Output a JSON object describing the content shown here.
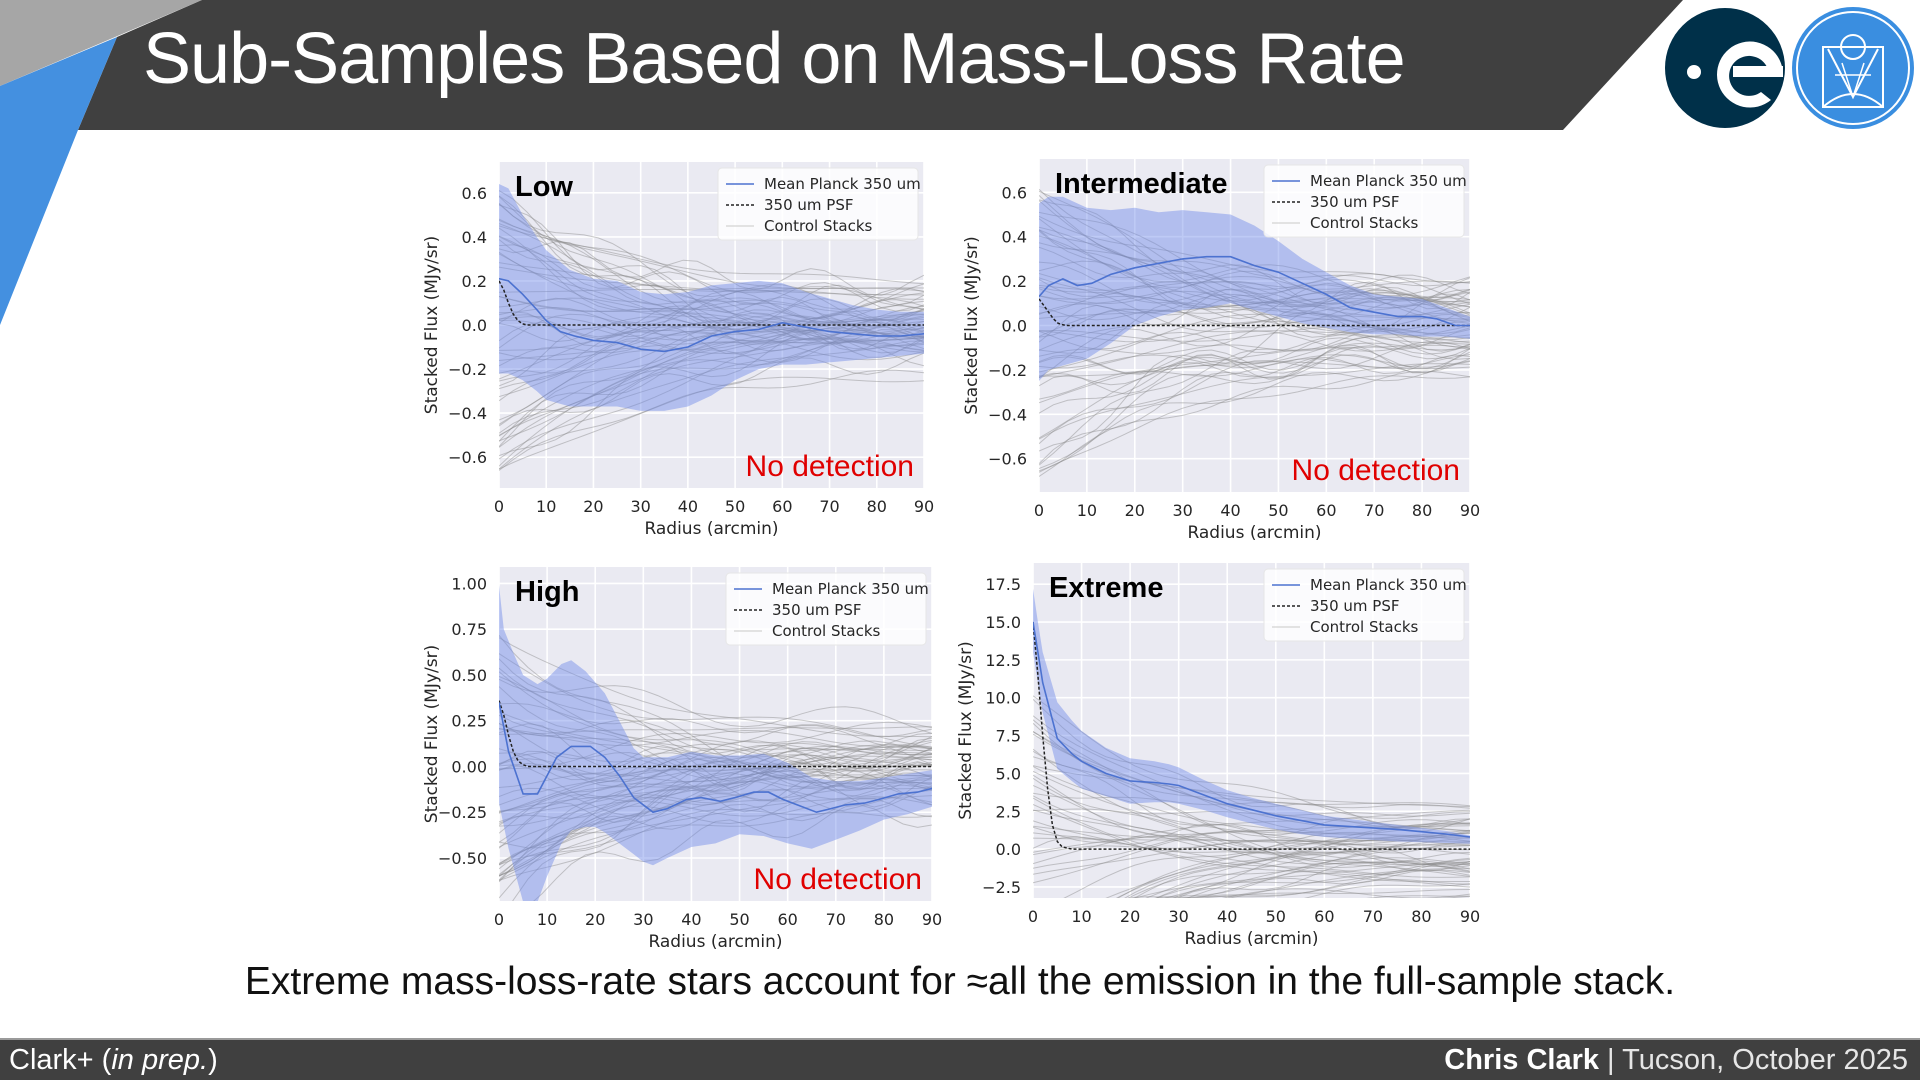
{
  "slide": {
    "title": "Sub-Samples Based on Mass-Loss Rate",
    "caption": "Extreme mass-loss-rate stars account for ≈all the emission in the full-sample stack.",
    "footer": {
      "citation_prefix": "Clark+ (",
      "citation_italic": "in prep.",
      "citation_suffix": ")",
      "presenter": "Chris Clark",
      "separator": " | ",
      "venue_date": "Tucson, October 2025"
    },
    "logos": [
      "esa-logo",
      "jwst-stsci-logo"
    ],
    "colors": {
      "title_bar": "#404040",
      "accent_blue": "#4490e0",
      "accent_gray": "#a6a6a6",
      "esa_navy": "#003049",
      "jwst_blue": "#3a8ee0",
      "no_detection_red": "#e00000",
      "mean_line": "#4c72d0",
      "band_fill": "#a9b8ee",
      "plot_bg": "#eaeaf2"
    }
  },
  "chart_data": [
    {
      "type": "line",
      "panel_label": "Low",
      "annotation": "No detection",
      "xlabel": "Radius (arcmin)",
      "ylabel": "Stacked Flux (MJy/sr)",
      "xlim": [
        0,
        90
      ],
      "ylim": [
        -0.74,
        0.74
      ],
      "xticks": [
        0,
        10,
        20,
        30,
        40,
        50,
        60,
        70,
        80,
        90
      ],
      "yticks": [
        -0.6,
        -0.4,
        -0.2,
        0.0,
        0.2,
        0.4,
        0.6
      ],
      "ytick_labels": [
        "−0.6",
        "−0.4",
        "−0.2",
        "0.0",
        "0.2",
        "0.4",
        "0.6"
      ],
      "grid": true,
      "legend": {
        "position": "top-right",
        "entries": [
          "Mean Planck 350 um",
          "350 um PSF",
          "Control Stacks"
        ]
      },
      "series": [
        {
          "name": "Mean Planck 350 um",
          "x": [
            0,
            2,
            5,
            8,
            10,
            13,
            16,
            20,
            25,
            30,
            35,
            40,
            45,
            50,
            55,
            60,
            65,
            70,
            75,
            80,
            85,
            90
          ],
          "y": [
            0.21,
            0.2,
            0.14,
            0.07,
            0.02,
            -0.03,
            -0.05,
            -0.07,
            -0.08,
            -0.11,
            -0.12,
            -0.1,
            -0.05,
            -0.03,
            -0.02,
            0.01,
            -0.01,
            -0.03,
            -0.04,
            -0.05,
            -0.05,
            -0.04
          ]
        },
        {
          "name": "band_upper",
          "x": [
            0,
            2,
            5,
            8,
            10,
            15,
            20,
            25,
            30,
            35,
            40,
            45,
            50,
            55,
            60,
            65,
            70,
            75,
            80,
            85,
            90
          ],
          "y": [
            0.64,
            0.62,
            0.5,
            0.4,
            0.34,
            0.25,
            0.21,
            0.2,
            0.15,
            0.14,
            0.15,
            0.18,
            0.19,
            0.2,
            0.19,
            0.15,
            0.12,
            0.09,
            0.07,
            0.06,
            0.06
          ]
        },
        {
          "name": "band_lower",
          "x": [
            0,
            2,
            5,
            8,
            10,
            15,
            20,
            25,
            30,
            35,
            40,
            45,
            50,
            55,
            60,
            65,
            70,
            75,
            80,
            85,
            90
          ],
          "y": [
            -0.22,
            -0.22,
            -0.25,
            -0.3,
            -0.34,
            -0.37,
            -0.37,
            -0.37,
            -0.39,
            -0.39,
            -0.37,
            -0.32,
            -0.25,
            -0.2,
            -0.18,
            -0.18,
            -0.17,
            -0.16,
            -0.15,
            -0.14,
            -0.13
          ]
        },
        {
          "name": "350 um PSF",
          "x": [
            0,
            1,
            2,
            3,
            4,
            5,
            6,
            90
          ],
          "y": [
            0.2,
            0.16,
            0.1,
            0.05,
            0.02,
            0.005,
            0,
            0
          ]
        }
      ]
    },
    {
      "type": "line",
      "panel_label": "Intermediate",
      "annotation": "No detection",
      "xlabel": "Radius (arcmin)",
      "ylabel": "Stacked Flux (MJy/sr)",
      "xlim": [
        0,
        90
      ],
      "ylim": [
        -0.75,
        0.75
      ],
      "xticks": [
        0,
        10,
        20,
        30,
        40,
        50,
        60,
        70,
        80,
        90
      ],
      "yticks": [
        -0.6,
        -0.4,
        -0.2,
        0.0,
        0.2,
        0.4,
        0.6
      ],
      "ytick_labels": [
        "−0.6",
        "−0.4",
        "−0.2",
        "0.0",
        "0.2",
        "0.4",
        "0.6"
      ],
      "grid": true,
      "legend": {
        "position": "top-right",
        "entries": [
          "Mean Planck 350 um",
          "350 um PSF",
          "Control Stacks"
        ]
      },
      "series": [
        {
          "name": "Mean Planck 350 um",
          "x": [
            0,
            2,
            5,
            8,
            11,
            15,
            20,
            25,
            30,
            35,
            40,
            45,
            50,
            55,
            60,
            65,
            70,
            75,
            80,
            83,
            87,
            90
          ],
          "y": [
            0.13,
            0.18,
            0.21,
            0.18,
            0.19,
            0.23,
            0.26,
            0.28,
            0.3,
            0.31,
            0.31,
            0.27,
            0.24,
            0.19,
            0.14,
            0.08,
            0.06,
            0.04,
            0.04,
            0.03,
            0.0,
            0.0
          ]
        },
        {
          "name": "band_upper",
          "x": [
            0,
            2,
            5,
            10,
            15,
            20,
            25,
            30,
            35,
            40,
            45,
            50,
            55,
            60,
            65,
            70,
            75,
            80,
            85,
            90
          ],
          "y": [
            0.55,
            0.58,
            0.58,
            0.53,
            0.52,
            0.53,
            0.51,
            0.52,
            0.51,
            0.5,
            0.45,
            0.38,
            0.3,
            0.24,
            0.18,
            0.14,
            0.13,
            0.12,
            0.08,
            0.04
          ]
        },
        {
          "name": "band_lower",
          "x": [
            0,
            2,
            5,
            10,
            15,
            20,
            25,
            30,
            35,
            40,
            45,
            50,
            55,
            60,
            65,
            70,
            75,
            80,
            85,
            90
          ],
          "y": [
            -0.25,
            -0.2,
            -0.18,
            -0.15,
            -0.08,
            0.0,
            0.04,
            0.07,
            0.08,
            0.1,
            0.07,
            0.04,
            0.01,
            -0.01,
            -0.03,
            -0.04,
            -0.04,
            -0.05,
            -0.05,
            -0.06
          ]
        },
        {
          "name": "350 um PSF",
          "x": [
            0,
            1,
            2,
            3,
            4,
            5,
            6,
            90
          ],
          "y": [
            0.12,
            0.09,
            0.06,
            0.03,
            0.01,
            0.003,
            0,
            0
          ]
        }
      ]
    },
    {
      "type": "line",
      "panel_label": "High",
      "annotation": "No detection",
      "xlabel": "Radius (arcmin)",
      "ylabel": "Stacked Flux (MJy/sr)",
      "xlim": [
        0,
        90
      ],
      "ylim": [
        -0.735,
        1.09
      ],
      "xticks": [
        0,
        10,
        20,
        30,
        40,
        50,
        60,
        70,
        80,
        90
      ],
      "yticks": [
        -0.5,
        -0.25,
        0.0,
        0.25,
        0.5,
        0.75,
        1.0
      ],
      "ytick_labels": [
        "−0.50",
        "−0.25",
        "0.00",
        "0.25",
        "0.50",
        "0.75",
        "1.00"
      ],
      "grid": true,
      "legend": {
        "position": "top-right",
        "entries": [
          "Mean Planck 350 um",
          "350 um PSF",
          "Control Stacks"
        ]
      },
      "series": [
        {
          "name": "Mean Planck 350 um",
          "x": [
            0,
            2,
            5,
            8,
            12,
            15,
            19,
            22,
            25,
            28,
            32,
            35,
            39,
            42,
            46,
            49,
            53,
            56,
            59,
            62,
            66,
            69,
            72,
            76,
            79,
            83,
            87,
            90
          ],
          "y": [
            0.35,
            0.08,
            -0.15,
            -0.15,
            0.05,
            0.11,
            0.11,
            0.05,
            -0.05,
            -0.17,
            -0.25,
            -0.23,
            -0.18,
            -0.17,
            -0.19,
            -0.17,
            -0.14,
            -0.14,
            -0.18,
            -0.21,
            -0.25,
            -0.23,
            -0.21,
            -0.2,
            -0.18,
            -0.15,
            -0.14,
            -0.12
          ]
        },
        {
          "name": "band_upper",
          "x": [
            0,
            1,
            3,
            5,
            8,
            10,
            13,
            15,
            18,
            22,
            25,
            28,
            30,
            35,
            40,
            45,
            50,
            55,
            60,
            65,
            70,
            75,
            80,
            85,
            90
          ],
          "y": [
            0.99,
            0.75,
            0.62,
            0.5,
            0.45,
            0.48,
            0.56,
            0.58,
            0.52,
            0.4,
            0.25,
            0.1,
            0.05,
            0.05,
            0.08,
            0.06,
            0.06,
            0.07,
            0.02,
            -0.06,
            -0.08,
            -0.08,
            -0.06,
            -0.04,
            -0.02
          ]
        },
        {
          "name": "band_lower",
          "x": [
            0,
            2,
            5,
            7,
            8,
            10,
            13,
            15,
            18,
            20,
            22,
            25,
            28,
            30,
            32,
            35,
            40,
            45,
            50,
            55,
            60,
            65,
            70,
            75,
            80,
            85,
            90
          ],
          "y": [
            -0.2,
            -0.45,
            -0.74,
            -0.74,
            -0.74,
            -0.6,
            -0.42,
            -0.35,
            -0.33,
            -0.33,
            -0.36,
            -0.42,
            -0.48,
            -0.52,
            -0.54,
            -0.5,
            -0.44,
            -0.42,
            -0.37,
            -0.38,
            -0.42,
            -0.45,
            -0.4,
            -0.35,
            -0.29,
            -0.26,
            -0.22
          ]
        },
        {
          "name": "350 um PSF",
          "x": [
            0,
            1,
            2,
            3,
            4,
            5,
            6,
            90
          ],
          "y": [
            0.36,
            0.28,
            0.17,
            0.08,
            0.03,
            0.01,
            0,
            0
          ]
        }
      ]
    },
    {
      "type": "line",
      "panel_label": "Extreme",
      "annotation": "",
      "xlabel": "Radius (arcmin)",
      "ylabel": "Stacked Flux (MJy/sr)",
      "xlim": [
        0,
        90
      ],
      "ylim": [
        -3.23,
        18.9
      ],
      "xticks": [
        0,
        10,
        20,
        30,
        40,
        50,
        60,
        70,
        80,
        90
      ],
      "yticks": [
        -2.5,
        0.0,
        2.5,
        5.0,
        7.5,
        10.0,
        12.5,
        15.0,
        17.5
      ],
      "ytick_labels": [
        "−2.5",
        "0.0",
        "2.5",
        "5.0",
        "7.5",
        "10.0",
        "12.5",
        "15.0",
        "17.5"
      ],
      "grid": true,
      "legend": {
        "position": "top-right",
        "entries": [
          "Mean Planck 350 um",
          "350 um PSF",
          "Control Stacks"
        ]
      },
      "series": [
        {
          "name": "Mean Planck 350 um",
          "x": [
            0,
            1,
            2,
            5,
            8,
            10,
            15,
            20,
            25,
            28,
            30,
            35,
            40,
            45,
            50,
            55,
            60,
            65,
            70,
            75,
            80,
            85,
            90
          ],
          "y": [
            15.0,
            13.0,
            11.0,
            7.3,
            6.3,
            5.8,
            5.0,
            4.5,
            4.4,
            4.3,
            4.2,
            3.6,
            3.0,
            2.6,
            2.2,
            1.9,
            1.6,
            1.5,
            1.4,
            1.3,
            1.15,
            1.0,
            0.8
          ]
        },
        {
          "name": "band_upper",
          "x": [
            0,
            1,
            2,
            5,
            8,
            10,
            15,
            20,
            25,
            28,
            30,
            35,
            40,
            45,
            50,
            55,
            60,
            65,
            70,
            75,
            80,
            85,
            90
          ],
          "y": [
            17.2,
            15.0,
            13.0,
            9.7,
            8.5,
            7.8,
            6.7,
            6.0,
            5.8,
            5.6,
            5.4,
            4.6,
            3.9,
            3.4,
            3.0,
            2.6,
            2.2,
            2.0,
            1.8,
            1.6,
            1.4,
            1.2,
            0.9
          ]
        },
        {
          "name": "band_lower",
          "x": [
            0,
            1,
            2,
            5,
            8,
            10,
            15,
            20,
            25,
            28,
            30,
            35,
            40,
            45,
            50,
            55,
            60,
            65,
            70,
            75,
            80,
            85,
            90
          ],
          "y": [
            13.0,
            11.0,
            9.0,
            5.3,
            4.5,
            4.0,
            3.5,
            3.0,
            3.1,
            3.1,
            3.0,
            2.6,
            2.1,
            1.7,
            1.3,
            1.0,
            0.8,
            0.7,
            0.6,
            0.5,
            0.45,
            0.4,
            0.35
          ]
        },
        {
          "name": "350 um PSF",
          "x": [
            0,
            1,
            2,
            3,
            4,
            5,
            6,
            8,
            90
          ],
          "y": [
            15.0,
            11.5,
            7.5,
            4.0,
            1.6,
            0.5,
            0.15,
            0,
            0
          ]
        }
      ]
    }
  ]
}
